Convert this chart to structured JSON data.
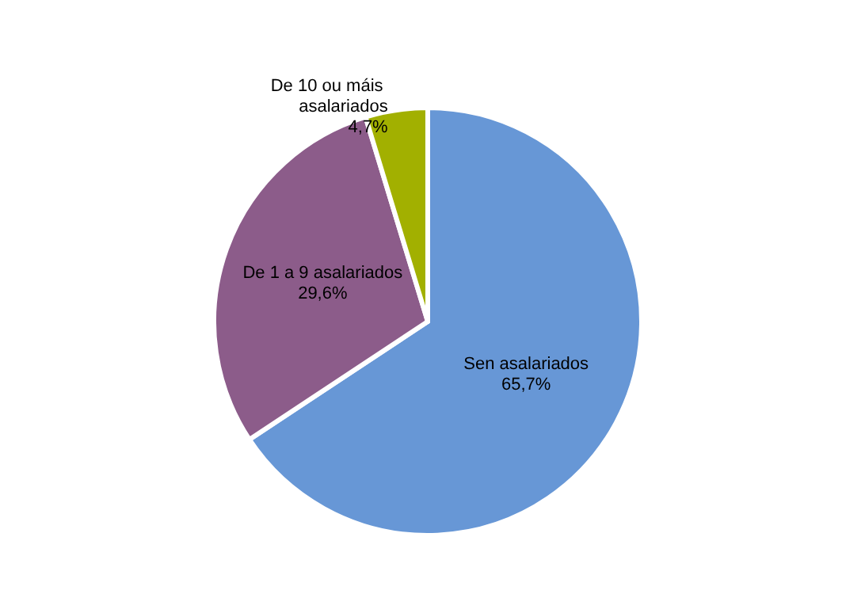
{
  "chart_data": {
    "type": "pie",
    "categories": [
      "Sen asalariados",
      "De 1 a 9 asalariados",
      "De 10 ou máis asalariados"
    ],
    "values": [
      65.7,
      29.6,
      4.7
    ],
    "value_labels": [
      "65,7%",
      "29,6%",
      "4,7%"
    ],
    "colors": [
      "#6797d6",
      "#8c5c8a",
      "#a2b000"
    ],
    "legend": false
  }
}
